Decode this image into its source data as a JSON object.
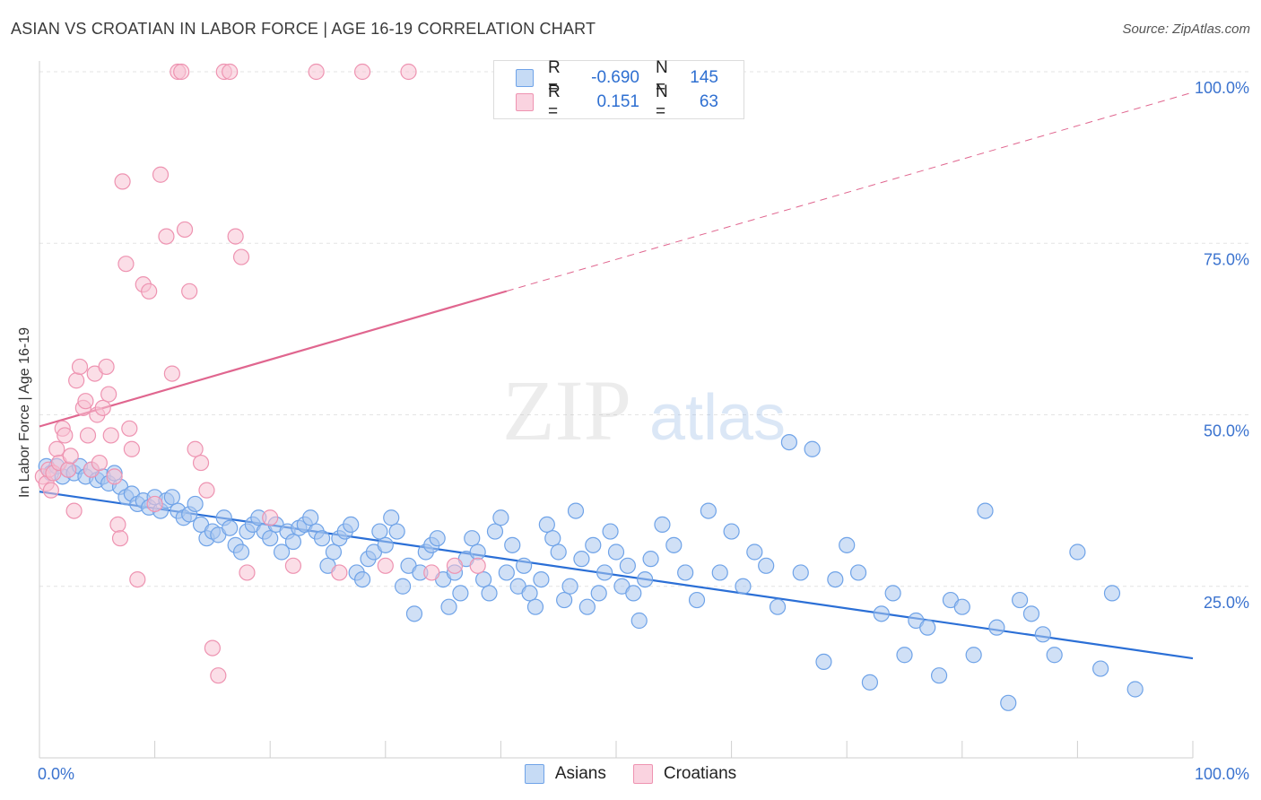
{
  "header": {
    "title": "ASIAN VS CROATIAN IN LABOR FORCE | AGE 16-19 CORRELATION CHART",
    "source": "Source: ZipAtlas.com"
  },
  "watermark": {
    "zip": "ZIP",
    "atlas": "atlas"
  },
  "legend": {
    "rows": [
      {
        "r_label": "R =",
        "r_value": "-0.690",
        "n_label": "N =",
        "n_value": "145",
        "color": "#6fa3e8"
      },
      {
        "r_label": "R =",
        "r_value": "0.151",
        "n_label": "N =",
        "n_value": "63",
        "color": "#f19bb8"
      }
    ]
  },
  "bottom_legend": {
    "asians": "Asians",
    "croatians": "Croatians"
  },
  "colors": {
    "asian_fill": "#a9c6ee",
    "asian_stroke": "#6fa3e8",
    "asian_line": "#2b6fd6",
    "croatian_fill": "#f7c2d3",
    "croatian_stroke": "#ee93b1",
    "croatian_line": "#e0668f",
    "axis_text": "#3b73cf",
    "grid": "#e3e3e3"
  },
  "chart_data": {
    "type": "scatter",
    "title": "ASIAN VS CROATIAN IN LABOR FORCE | AGE 16-19 CORRELATION CHART",
    "xlabel": "",
    "ylabel": "In Labor Force | Age 16-19",
    "xlim": [
      0,
      100
    ],
    "ylim": [
      0,
      100
    ],
    "x_tick_labels": [
      "0.0%",
      "100.0%"
    ],
    "y_ticks": [
      {
        "value": 25,
        "label": "25.0%"
      },
      {
        "value": 50,
        "label": "50.0%"
      },
      {
        "value": 75,
        "label": "75.0%"
      },
      {
        "value": 100,
        "label": "100.0%"
      }
    ],
    "series": [
      {
        "name": "Asians",
        "r": -0.69,
        "n": 145,
        "trend": {
          "x0": 0,
          "y0": 38.8,
          "x1": 100,
          "y1": 14.5,
          "dashed_from": null
        },
        "points": [
          [
            0.6,
            42.5
          ],
          [
            1.0,
            41.5
          ],
          [
            1.5,
            42.5
          ],
          [
            2,
            41
          ],
          [
            2.5,
            42
          ],
          [
            3,
            41.5
          ],
          [
            3.5,
            42.5
          ],
          [
            4,
            41
          ],
          [
            4.5,
            42
          ],
          [
            5,
            40.5
          ],
          [
            5.5,
            41
          ],
          [
            6,
            40
          ],
          [
            6.5,
            41.5
          ],
          [
            7,
            39.5
          ],
          [
            7.5,
            38
          ],
          [
            8,
            38.5
          ],
          [
            8.5,
            37
          ],
          [
            9,
            37.5
          ],
          [
            9.5,
            36.5
          ],
          [
            10,
            38
          ],
          [
            10.5,
            36
          ],
          [
            11,
            37.5
          ],
          [
            11.5,
            38
          ],
          [
            12,
            36
          ],
          [
            12.5,
            35
          ],
          [
            13,
            35.5
          ],
          [
            13.5,
            37
          ],
          [
            14,
            34
          ],
          [
            14.5,
            32
          ],
          [
            15,
            33
          ],
          [
            15.5,
            32.5
          ],
          [
            16,
            35
          ],
          [
            16.5,
            33.5
          ],
          [
            17,
            31
          ],
          [
            17.5,
            30
          ],
          [
            18,
            33
          ],
          [
            18.5,
            34
          ],
          [
            19,
            35
          ],
          [
            19.5,
            33
          ],
          [
            20,
            32
          ],
          [
            20.5,
            34
          ],
          [
            21,
            30
          ],
          [
            21.5,
            33
          ],
          [
            22,
            31.5
          ],
          [
            22.5,
            33.5
          ],
          [
            23,
            34
          ],
          [
            23.5,
            35
          ],
          [
            24,
            33
          ],
          [
            24.5,
            32
          ],
          [
            25,
            28
          ],
          [
            25.5,
            30
          ],
          [
            26,
            32
          ],
          [
            26.5,
            33
          ],
          [
            27,
            34
          ],
          [
            27.5,
            27
          ],
          [
            28,
            26
          ],
          [
            28.5,
            29
          ],
          [
            29,
            30
          ],
          [
            29.5,
            33
          ],
          [
            30,
            31
          ],
          [
            30.5,
            35
          ],
          [
            31,
            33
          ],
          [
            31.5,
            25
          ],
          [
            32,
            28
          ],
          [
            32.5,
            21
          ],
          [
            33,
            27
          ],
          [
            33.5,
            30
          ],
          [
            34,
            31
          ],
          [
            34.5,
            32
          ],
          [
            35,
            26
          ],
          [
            35.5,
            22
          ],
          [
            36,
            27
          ],
          [
            36.5,
            24
          ],
          [
            37,
            29
          ],
          [
            37.5,
            32
          ],
          [
            38,
            30
          ],
          [
            38.5,
            26
          ],
          [
            39,
            24
          ],
          [
            39.5,
            33
          ],
          [
            40,
            35
          ],
          [
            40.5,
            27
          ],
          [
            41,
            31
          ],
          [
            41.5,
            25
          ],
          [
            42,
            28
          ],
          [
            42.5,
            24
          ],
          [
            43,
            22
          ],
          [
            43.5,
            26
          ],
          [
            44,
            34
          ],
          [
            44.5,
            32
          ],
          [
            45,
            30
          ],
          [
            45.5,
            23
          ],
          [
            46,
            25
          ],
          [
            46.5,
            36
          ],
          [
            47,
            29
          ],
          [
            47.5,
            22
          ],
          [
            48,
            31
          ],
          [
            48.5,
            24
          ],
          [
            49,
            27
          ],
          [
            49.5,
            33
          ],
          [
            50,
            30
          ],
          [
            50.5,
            25
          ],
          [
            51,
            28
          ],
          [
            51.5,
            24
          ],
          [
            52,
            20
          ],
          [
            52.5,
            26
          ],
          [
            53,
            29
          ],
          [
            54,
            34
          ],
          [
            55,
            31
          ],
          [
            56,
            27
          ],
          [
            57,
            23
          ],
          [
            58,
            36
          ],
          [
            59,
            27
          ],
          [
            60,
            33
          ],
          [
            61,
            25
          ],
          [
            62,
            30
          ],
          [
            63,
            28
          ],
          [
            64,
            22
          ],
          [
            65,
            46
          ],
          [
            66,
            27
          ],
          [
            67,
            45
          ],
          [
            68,
            14
          ],
          [
            69,
            26
          ],
          [
            70,
            31
          ],
          [
            71,
            27
          ],
          [
            72,
            11
          ],
          [
            73,
            21
          ],
          [
            74,
            24
          ],
          [
            75,
            15
          ],
          [
            76,
            20
          ],
          [
            77,
            19
          ],
          [
            78,
            12
          ],
          [
            79,
            23
          ],
          [
            80,
            22
          ],
          [
            81,
            15
          ],
          [
            82,
            36
          ],
          [
            83,
            19
          ],
          [
            84,
            8
          ],
          [
            85,
            23
          ],
          [
            86,
            21
          ],
          [
            87,
            18
          ],
          [
            88,
            15
          ],
          [
            90,
            30
          ],
          [
            92,
            13
          ],
          [
            93,
            24
          ],
          [
            95,
            10
          ]
        ]
      },
      {
        "name": "Croatians",
        "r": 0.151,
        "n": 63,
        "trend": {
          "x0": 0,
          "y0": 48.3,
          "x1": 100,
          "y1": 97,
          "dashed_from": 40.5
        },
        "points": [
          [
            0.3,
            41
          ],
          [
            0.6,
            40
          ],
          [
            0.8,
            42
          ],
          [
            1.0,
            39
          ],
          [
            1.2,
            41.5
          ],
          [
            1.5,
            45
          ],
          [
            1.7,
            43
          ],
          [
            2,
            48
          ],
          [
            2.2,
            47
          ],
          [
            2.5,
            42
          ],
          [
            2.7,
            44
          ],
          [
            3,
            36
          ],
          [
            3.2,
            55
          ],
          [
            3.5,
            57
          ],
          [
            3.8,
            51
          ],
          [
            4,
            52
          ],
          [
            4.2,
            47
          ],
          [
            4.5,
            42
          ],
          [
            4.8,
            56
          ],
          [
            5,
            50
          ],
          [
            5.2,
            43
          ],
          [
            5.5,
            51
          ],
          [
            5.8,
            57
          ],
          [
            6,
            53
          ],
          [
            6.2,
            47
          ],
          [
            6.5,
            41
          ],
          [
            6.8,
            34
          ],
          [
            7,
            32
          ],
          [
            7.2,
            84
          ],
          [
            7.5,
            72
          ],
          [
            7.8,
            48
          ],
          [
            8,
            45
          ],
          [
            8.5,
            26
          ],
          [
            9,
            69
          ],
          [
            9.5,
            68
          ],
          [
            10,
            37
          ],
          [
            10.5,
            85
          ],
          [
            11,
            76
          ],
          [
            11.5,
            56
          ],
          [
            12,
            100
          ],
          [
            12.3,
            100
          ],
          [
            12.6,
            77
          ],
          [
            13,
            68
          ],
          [
            13.5,
            45
          ],
          [
            14,
            43
          ],
          [
            14.5,
            39
          ],
          [
            15,
            16
          ],
          [
            15.5,
            12
          ],
          [
            16,
            100
          ],
          [
            16.5,
            100
          ],
          [
            17,
            76
          ],
          [
            17.5,
            73
          ],
          [
            18,
            27
          ],
          [
            20,
            35
          ],
          [
            22,
            28
          ],
          [
            24,
            100
          ],
          [
            26,
            27
          ],
          [
            28,
            100
          ],
          [
            30,
            28
          ],
          [
            32,
            100
          ],
          [
            34,
            27
          ],
          [
            36,
            28
          ],
          [
            38,
            28
          ]
        ]
      }
    ]
  }
}
